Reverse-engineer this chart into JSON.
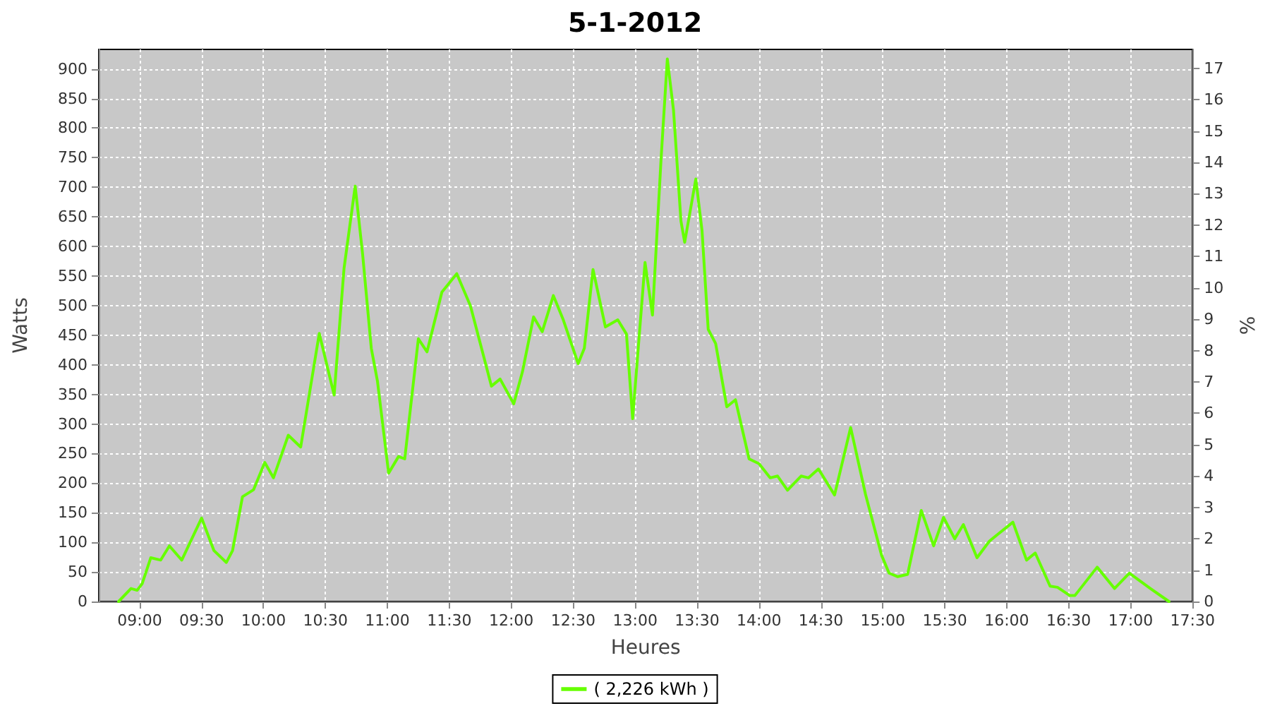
{
  "chart_data": {
    "type": "line",
    "title": "5-1-2012",
    "xlabel": "Heures",
    "ylabel": "Watts",
    "y2label": "%",
    "x": [
      8.83,
      8.93,
      8.98,
      9.02,
      9.09,
      9.17,
      9.24,
      9.34,
      9.5,
      9.6,
      9.7,
      9.75,
      9.83,
      9.92,
      10.01,
      10.08,
      10.2,
      10.3,
      10.45,
      10.57,
      10.65,
      10.74,
      10.8,
      10.87,
      10.92,
      11.01,
      11.09,
      11.14,
      11.25,
      11.32,
      11.44,
      11.56,
      11.67,
      11.84,
      11.91,
      12.02,
      12.09,
      12.18,
      12.25,
      12.34,
      12.42,
      12.54,
      12.59,
      12.66,
      12.76,
      12.86,
      12.93,
      12.98,
      13.08,
      13.14,
      13.21,
      13.26,
      13.31,
      13.37,
      13.4,
      13.49,
      13.54,
      13.59,
      13.65,
      13.74,
      13.81,
      13.92,
      14.0,
      14.09,
      14.15,
      14.23,
      14.34,
      14.4,
      14.48,
      14.61,
      14.74,
      14.86,
      14.99,
      15.05,
      15.12,
      15.2,
      15.31,
      15.41,
      15.49,
      15.58,
      15.65,
      15.76,
      15.86,
      15.93,
      16.05,
      16.16,
      16.23,
      16.35,
      16.41,
      16.51,
      16.55,
      16.73,
      16.87,
      16.99,
      17.16,
      17.31
    ],
    "series": [
      {
        "name": "( 2,226 kWh )",
        "color": "#66ff00",
        "values": [
          0,
          22,
          19,
          30,
          74,
          70,
          94,
          70,
          141,
          86,
          66,
          86,
          177,
          189,
          235,
          209,
          281,
          261,
          453,
          349,
          563,
          702,
          587,
          428,
          372,
          217,
          245,
          241,
          444,
          422,
          523,
          554,
          500,
          364,
          376,
          334,
          388,
          481,
          456,
          517,
          476,
          402,
          428,
          561,
          464,
          476,
          452,
          309,
          573,
          484,
          750,
          917,
          830,
          643,
          607,
          714,
          627,
          460,
          436,
          329,
          341,
          241,
          233,
          209,
          212,
          188,
          212,
          209,
          224,
          180,
          294,
          181,
          78,
          48,
          42,
          46,
          154,
          94,
          142,
          106,
          130,
          74,
          102,
          114,
          134,
          70,
          82,
          26,
          24,
          10,
          10,
          58,
          22,
          48,
          22,
          0
        ]
      }
    ],
    "xlim": [
      8.67,
      17.5
    ],
    "ylim": [
      0,
      933
    ],
    "y2lim": [
      0,
      17.6
    ],
    "xticks": [
      {
        "value": 9,
        "label": "09:00"
      },
      {
        "value": 9.5,
        "label": "09:30"
      },
      {
        "value": 10,
        "label": "10:00"
      },
      {
        "value": 10.5,
        "label": "10:30"
      },
      {
        "value": 11,
        "label": "11:00"
      },
      {
        "value": 11.5,
        "label": "11:30"
      },
      {
        "value": 12,
        "label": "12:00"
      },
      {
        "value": 12.5,
        "label": "12:30"
      },
      {
        "value": 13,
        "label": "13:00"
      },
      {
        "value": 13.5,
        "label": "13:30"
      },
      {
        "value": 14,
        "label": "14:00"
      },
      {
        "value": 14.5,
        "label": "14:30"
      },
      {
        "value": 15,
        "label": "15:00"
      },
      {
        "value": 15.5,
        "label": "15:30"
      },
      {
        "value": 16,
        "label": "16:00"
      },
      {
        "value": 16.5,
        "label": "16:30"
      },
      {
        "value": 17,
        "label": "17:00"
      },
      {
        "value": 17.5,
        "label": "17:30"
      }
    ],
    "yticks": [
      0,
      50,
      100,
      150,
      200,
      250,
      300,
      350,
      400,
      450,
      500,
      550,
      600,
      650,
      700,
      750,
      800,
      850,
      900
    ],
    "y2ticks": [
      0,
      1,
      2,
      3,
      4,
      5,
      6,
      7,
      8,
      9,
      10,
      11,
      12,
      13,
      14,
      15,
      16,
      17
    ],
    "grid": true,
    "legend": "bottom",
    "marker": "none",
    "line_style": "solid"
  }
}
